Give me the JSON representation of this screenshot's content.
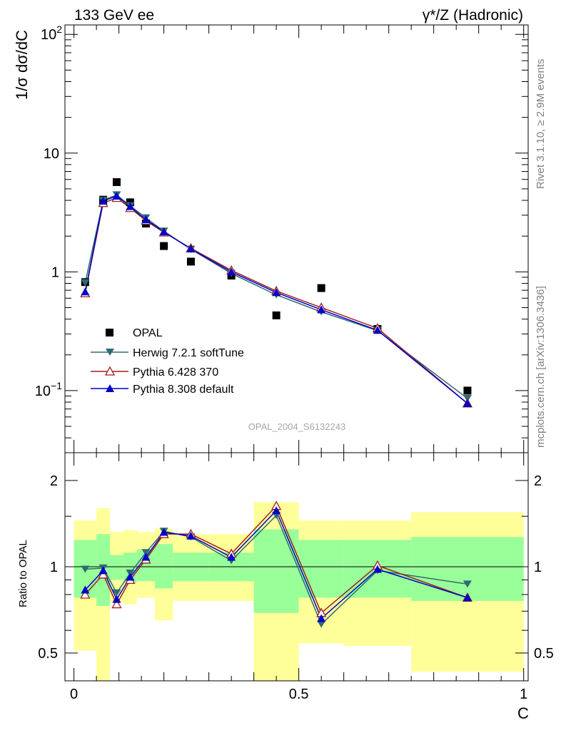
{
  "header": {
    "left": "133 GeV ee",
    "right": "γ*/Z (Hadronic)"
  },
  "side_labels": {
    "rivet": "Rivet 3.1.10, ≥ 2.9M events",
    "mcplots": "mcplots.cern.ch [arXiv:1306.3436]"
  },
  "watermark": "OPAL_2004_S6132243",
  "colors": {
    "opal": "#000000",
    "herwig": "#2e6b73",
    "pythia6": "#a01e1e",
    "pythia8": "#0000cc",
    "band_inner": "#99ff99",
    "band_outer": "#ffff99"
  },
  "chart_data": [
    {
      "type": "scatter",
      "panel": "main",
      "ylabel": "1/σ dσ/dC",
      "yscale": "log",
      "ylim": [
        0.03,
        120
      ],
      "xlim": [
        -0.02,
        1.01
      ],
      "yticks": [
        {
          "v": 100,
          "label": "10",
          "exp": "2"
        },
        {
          "v": 10,
          "label": "10",
          "exp": ""
        },
        {
          "v": 1,
          "label": "1",
          "exp": ""
        },
        {
          "v": 0.1,
          "label": "10",
          "exp": "−1"
        }
      ],
      "legend_position": "center-left",
      "x": [
        0.025,
        0.065,
        0.095,
        0.125,
        0.16,
        0.2,
        0.26,
        0.35,
        0.45,
        0.55,
        0.675,
        0.875
      ],
      "series": [
        {
          "name": "OPAL",
          "marker": "square",
          "values": [
            0.82,
            4.05,
            5.7,
            3.85,
            2.55,
            1.65,
            1.22,
            0.93,
            0.43,
            0.73,
            0.33,
            0.1
          ]
        },
        {
          "name": "Herwig 7.2.1 softTune",
          "marker": "triangle-down",
          "values": [
            0.81,
            4.0,
            4.45,
            3.6,
            2.85,
            2.2,
            1.55,
            0.97,
            0.64,
            0.46,
            0.32,
            0.086
          ]
        },
        {
          "name": "Pythia 6.428 370",
          "marker": "triangle-up-open",
          "values": [
            0.66,
            3.8,
            4.2,
            3.45,
            2.7,
            2.15,
            1.58,
            1.03,
            0.69,
            0.5,
            0.335,
            0.078
          ]
        },
        {
          "name": "Pythia 8.308 default",
          "marker": "triangle-up",
          "values": [
            0.68,
            3.95,
            4.35,
            3.55,
            2.75,
            2.18,
            1.56,
            1.0,
            0.67,
            0.48,
            0.322,
            0.078
          ]
        }
      ]
    },
    {
      "type": "line",
      "panel": "ratio",
      "xlabel": "C",
      "ylabel": "Ratio to OPAL",
      "yscale": "log",
      "ylim": [
        0.4,
        2.5
      ],
      "xlim": [
        -0.02,
        1.01
      ],
      "xticks": [
        "0",
        "0.5",
        "1"
      ],
      "yticks": [
        "0.5",
        "1",
        "2"
      ],
      "x": [
        0.025,
        0.065,
        0.095,
        0.125,
        0.16,
        0.2,
        0.26,
        0.35,
        0.45,
        0.55,
        0.675,
        0.875
      ],
      "series": [
        {
          "name": "Herwig 7.2.1 softTune",
          "values": [
            0.98,
            0.99,
            0.81,
            0.95,
            1.12,
            1.33,
            1.27,
            1.05,
            1.51,
            0.63,
            0.97,
            0.87
          ]
        },
        {
          "name": "Pythia 6.428 370",
          "values": [
            0.8,
            0.94,
            0.74,
            0.9,
            1.06,
            1.3,
            1.3,
            1.11,
            1.63,
            0.69,
            1.01,
            0.78
          ]
        },
        {
          "name": "Pythia 8.308 default",
          "values": [
            0.83,
            0.97,
            0.77,
            0.92,
            1.08,
            1.32,
            1.28,
            1.08,
            1.57,
            0.66,
            0.98,
            0.78
          ]
        }
      ],
      "bands": [
        {
          "x0": 0.0,
          "x1": 0.05,
          "inner": [
            0.78,
            1.24
          ],
          "outer": [
            0.51,
            1.45
          ]
        },
        {
          "x0": 0.05,
          "x1": 0.08,
          "inner": [
            0.73,
            1.3
          ],
          "outer": [
            0.25,
            1.6
          ]
        },
        {
          "x0": 0.08,
          "x1": 0.11,
          "inner": [
            0.9,
            1.1
          ],
          "outer": [
            0.75,
            1.32
          ]
        },
        {
          "x0": 0.11,
          "x1": 0.14,
          "inner": [
            0.88,
            1.12
          ],
          "outer": [
            0.74,
            1.34
          ]
        },
        {
          "x0": 0.14,
          "x1": 0.18,
          "inner": [
            0.89,
            1.15
          ],
          "outer": [
            0.78,
            1.32
          ]
        },
        {
          "x0": 0.18,
          "x1": 0.22,
          "inner": [
            0.84,
            1.2
          ],
          "outer": [
            0.65,
            1.36
          ]
        },
        {
          "x0": 0.22,
          "x1": 0.3,
          "inner": [
            0.89,
            1.12
          ],
          "outer": [
            0.76,
            1.3
          ]
        },
        {
          "x0": 0.3,
          "x1": 0.4,
          "inner": [
            0.89,
            1.12
          ],
          "outer": [
            0.76,
            1.3
          ]
        },
        {
          "x0": 0.4,
          "x1": 0.5,
          "inner": [
            0.69,
            1.35
          ],
          "outer": [
            0.3,
            1.68
          ]
        },
        {
          "x0": 0.5,
          "x1": 0.6,
          "inner": [
            0.78,
            1.24
          ],
          "outer": [
            0.54,
            1.45
          ]
        },
        {
          "x0": 0.6,
          "x1": 0.75,
          "inner": [
            0.78,
            1.24
          ],
          "outer": [
            0.53,
            1.45
          ]
        },
        {
          "x0": 0.75,
          "x1": 1.0,
          "inner": [
            0.76,
            1.27
          ],
          "outer": [
            0.43,
            1.55
          ]
        }
      ]
    }
  ]
}
